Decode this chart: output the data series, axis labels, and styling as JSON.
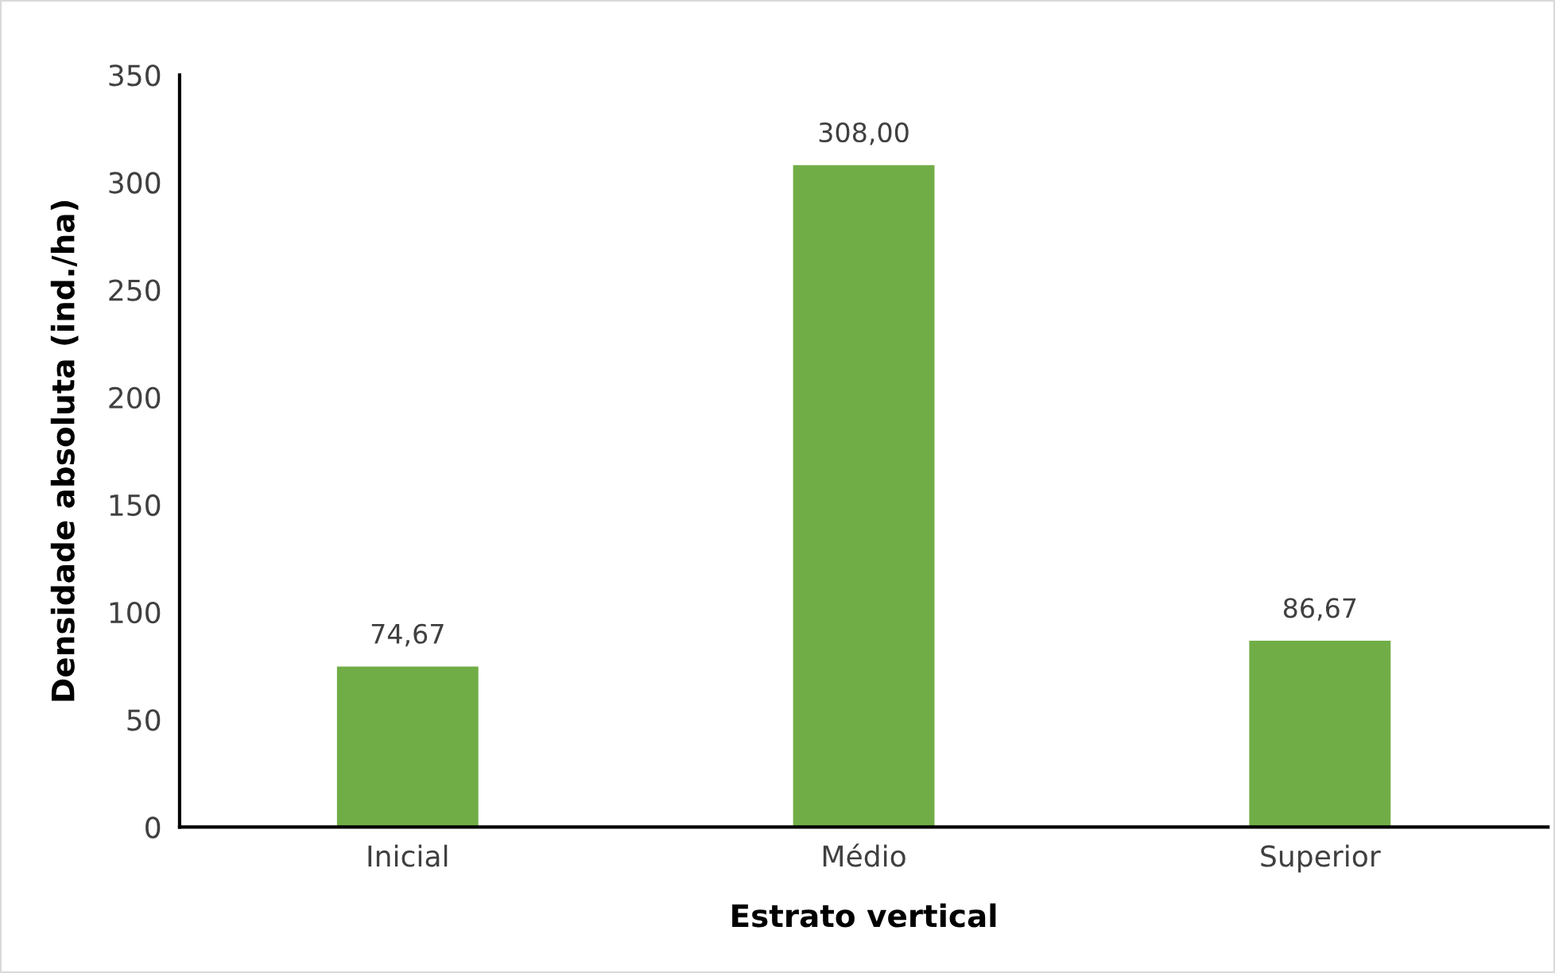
{
  "chart_data": {
    "type": "bar",
    "xlabel": "Estrato vertical",
    "ylabel": "Densidade absoluta (ind./ha)",
    "categories": [
      "Inicial",
      "Médio",
      "Superior"
    ],
    "values": [
      74.67,
      308.0,
      86.67
    ],
    "value_labels": [
      "74,67",
      "308,00",
      "86,67"
    ],
    "color": "#70ad47",
    "ylim": [
      0,
      350
    ],
    "yticks": [
      0,
      50,
      100,
      150,
      200,
      250,
      300,
      350
    ],
    "grid": false,
    "legend": false
  }
}
